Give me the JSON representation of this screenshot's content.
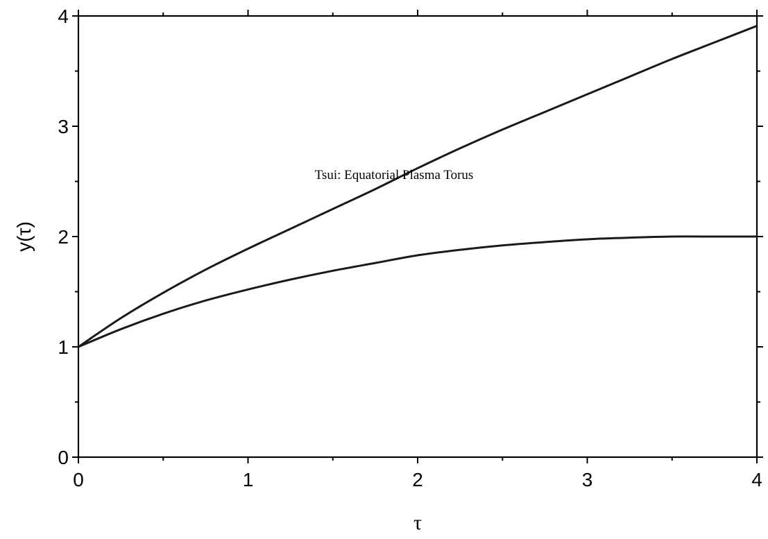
{
  "chart_data": {
    "type": "line",
    "xlabel": "τ",
    "ylabel": "y(τ)",
    "xlim": [
      0,
      4
    ],
    "ylim": [
      0,
      4
    ],
    "xticks": [
      0,
      1,
      2,
      3,
      4
    ],
    "yticks": [
      0,
      1,
      2,
      3,
      4
    ],
    "xtick_labels": [
      "0",
      "1",
      "2",
      "3",
      "4"
    ],
    "ytick_labels": [
      "0",
      "1",
      "2",
      "3",
      "4"
    ],
    "grid": false,
    "annotation": "Tsui: Equatorial Plasma Torus",
    "line_color": "#1a1a1a",
    "series": [
      {
        "x": [
          0,
          0.25,
          0.5,
          0.75,
          1.0,
          1.25,
          1.5,
          1.75,
          2.0,
          2.25,
          2.5,
          2.75,
          3.0,
          3.25,
          3.5,
          3.75,
          4.0
        ],
        "y": [
          1.0,
          1.26,
          1.49,
          1.7,
          1.89,
          2.07,
          2.25,
          2.43,
          2.62,
          2.8,
          2.97,
          3.13,
          3.29,
          3.45,
          3.61,
          3.76,
          3.91
        ]
      },
      {
        "x": [
          0,
          0.25,
          0.5,
          0.75,
          1.0,
          1.25,
          1.5,
          1.75,
          2.0,
          2.25,
          2.5,
          2.75,
          3.0,
          3.25,
          3.5,
          3.75,
          4.0
        ],
        "y": [
          1.0,
          1.16,
          1.3,
          1.42,
          1.52,
          1.61,
          1.69,
          1.76,
          1.83,
          1.88,
          1.92,
          1.95,
          1.975,
          1.99,
          2.0,
          2.0,
          2.0
        ]
      }
    ]
  }
}
